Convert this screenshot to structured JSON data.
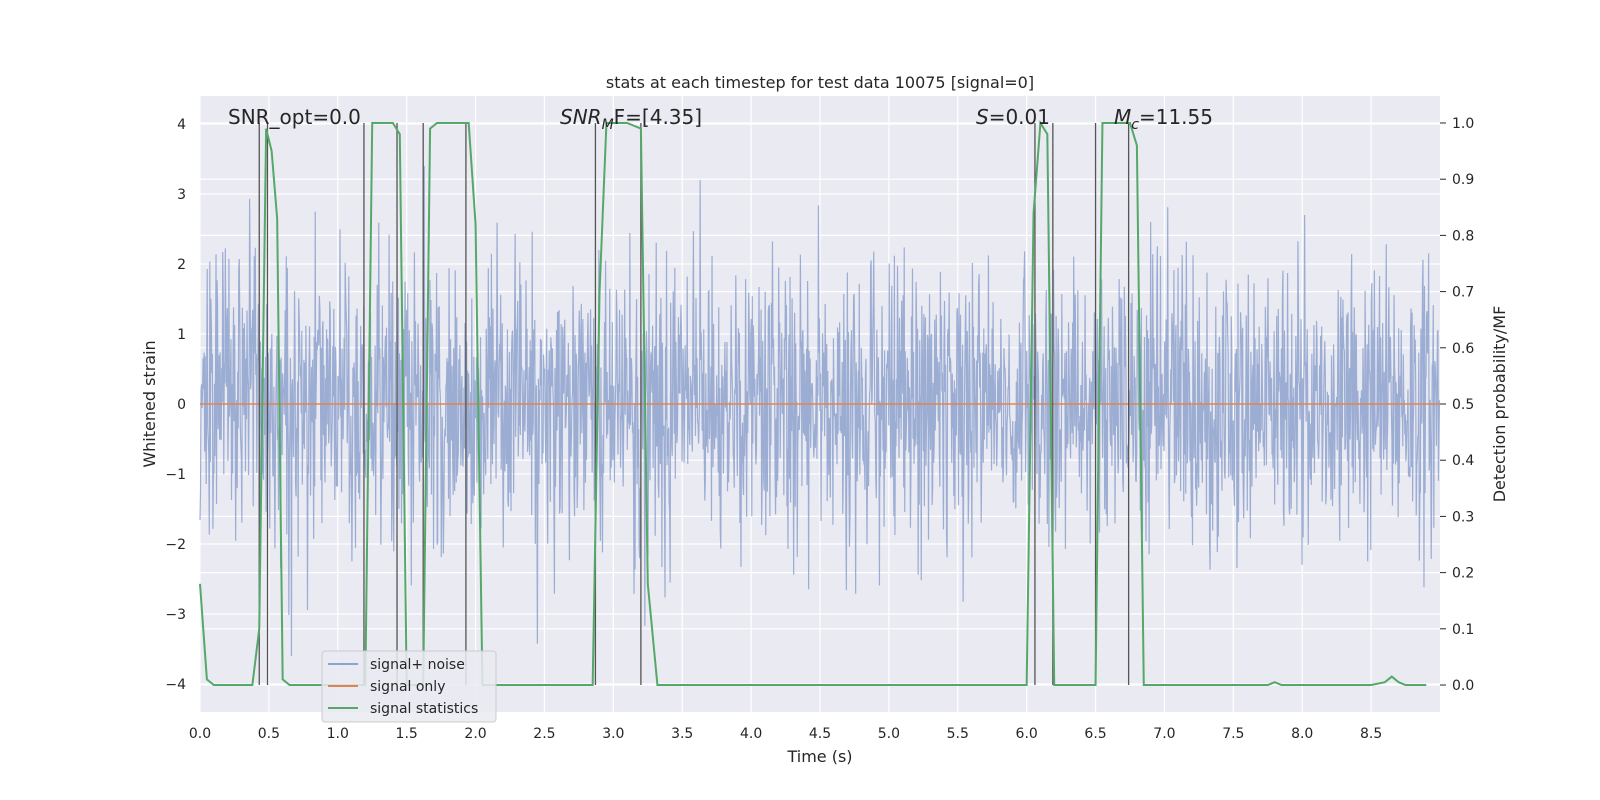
{
  "chart_data": {
    "type": "line",
    "title": "stats at each timestep for test data 10075 [signal=0]",
    "xlabel": "Time (s)",
    "ylabel": "Whitened strain",
    "y2label": "Detection probability/MF",
    "xlim": [
      0,
      9
    ],
    "ylim": [
      -4.4,
      4.4
    ],
    "y2lim": [
      -0.048,
      1.048
    ],
    "xticks": [
      "0.0",
      "0.5",
      "1.0",
      "1.5",
      "2.0",
      "2.5",
      "3.0",
      "3.5",
      "4.0",
      "4.5",
      "5.0",
      "5.5",
      "6.0",
      "6.5",
      "7.0",
      "7.5",
      "8.0",
      "8.5"
    ],
    "yticks": [
      "4",
      "3",
      "2",
      "1",
      "0",
      "−1",
      "−2",
      "−3",
      "−4"
    ],
    "y2ticks": [
      "1.0",
      "0.9",
      "0.8",
      "0.7",
      "0.6",
      "0.5",
      "0.4",
      "0.3",
      "0.2",
      "0.1",
      "0.0"
    ],
    "grid": true,
    "legend_position": "lower-left",
    "annotations": {
      "snr_opt": "SNR_opt=0.0",
      "snr_mf_label": "SNR",
      "snr_mf_sub": "M",
      "snr_mf_rest": "F=[4.35]",
      "s_label": "S",
      "s_rest": "=0.01",
      "mc_label": "M",
      "mc_sub": "c",
      "mc_rest": "=11.55"
    },
    "series": [
      {
        "name": "signal+ noise",
        "color": "#8ea2ce",
        "description_of_values": "whitened noise, roughly within ±2.5 with peaks near ±3.3",
        "std": 1.0
      },
      {
        "name": "signal only",
        "color": "#dd8452",
        "x": [
          0,
          9
        ],
        "y": [
          0,
          0
        ]
      },
      {
        "name": "signal statistics",
        "color": "#55a868",
        "axis": "right",
        "x": [
          0.0,
          0.05,
          0.1,
          0.2,
          0.3,
          0.38,
          0.43,
          0.48,
          0.52,
          0.56,
          0.6,
          0.65,
          0.75,
          0.9,
          1.0,
          1.1,
          1.15,
          1.2,
          1.25,
          1.3,
          1.4,
          1.45,
          1.5,
          1.58,
          1.62,
          1.67,
          1.72,
          1.8,
          1.9,
          1.95,
          2.0,
          2.05,
          2.2,
          2.5,
          2.7,
          2.85,
          2.9,
          2.95,
          3.0,
          3.1,
          3.2,
          3.25,
          3.32,
          3.4,
          3.6,
          4.0,
          5.0,
          5.5,
          5.8,
          6.0,
          6.05,
          6.1,
          6.15,
          6.2,
          6.25,
          6.3,
          6.35,
          6.45,
          6.5,
          6.55,
          6.6,
          6.7,
          6.75,
          6.8,
          6.85,
          6.9,
          7.0,
          7.5,
          7.75,
          7.8,
          7.85,
          8.0,
          8.5,
          8.6,
          8.65,
          8.7,
          8.75,
          8.8,
          8.9
        ],
        "y": [
          0.18,
          0.01,
          0.0,
          0.0,
          0.0,
          0.0,
          0.1,
          0.99,
          0.95,
          0.83,
          0.01,
          0.0,
          0.0,
          0.0,
          0.0,
          0.0,
          0.0,
          0.0,
          1.0,
          1.0,
          1.0,
          0.98,
          0.0,
          0.0,
          0.0,
          0.99,
          1.0,
          1.0,
          1.0,
          1.0,
          0.82,
          0.0,
          0.0,
          0.0,
          0.0,
          0.0,
          0.7,
          1.0,
          1.0,
          1.0,
          0.99,
          0.18,
          0.0,
          0.0,
          0.0,
          0.0,
          0.0,
          0.0,
          0.0,
          0.0,
          0.84,
          1.0,
          0.98,
          0.0,
          0.0,
          0.0,
          0.0,
          0.0,
          0.0,
          1.0,
          1.0,
          1.0,
          1.0,
          0.96,
          0.0,
          0.0,
          0.0,
          0.0,
          0.0,
          0.005,
          0.0,
          0.0,
          0.0,
          0.005,
          0.015,
          0.005,
          0.0,
          0.0,
          0.0
        ]
      }
    ],
    "vertical_markers_x": [
      0.43,
      0.49,
      1.19,
      1.43,
      1.62,
      1.93,
      2.87,
      3.2,
      6.06,
      6.19,
      6.5,
      6.74
    ]
  }
}
